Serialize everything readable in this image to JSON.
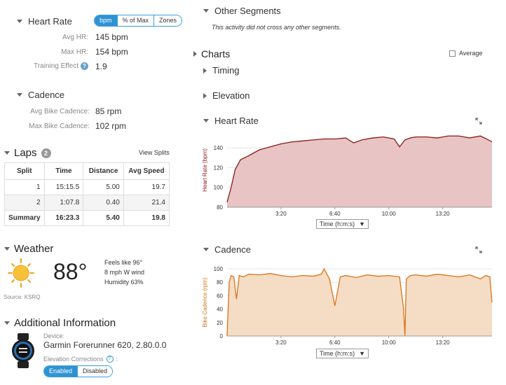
{
  "heart_rate": {
    "title": "Heart Rate",
    "toggle": [
      "bpm",
      "% of Max",
      "Zones"
    ],
    "rows": [
      {
        "label": "Avg HR:",
        "value": "145 bpm"
      },
      {
        "label": "Max HR:",
        "value": "154 bpm"
      },
      {
        "label": "Training Effect",
        "value": "1.9"
      }
    ]
  },
  "cadence": {
    "title": "Cadence",
    "rows": [
      {
        "label": "Avg Bike Cadence:",
        "value": "85 rpm"
      },
      {
        "label": "Max Bike Cadence:",
        "value": "102 rpm"
      }
    ]
  },
  "laps": {
    "title": "Laps",
    "count": "2",
    "view_splits": "View Splits",
    "headers": [
      "Split",
      "Time",
      "Distance",
      "Avg Speed"
    ],
    "rows": [
      [
        "1",
        "15:15.5",
        "5.00",
        "19.7"
      ],
      [
        "2",
        "1:07.8",
        "0.40",
        "21.4"
      ],
      [
        "Summary",
        "16:23.3",
        "5.40",
        "19.8"
      ]
    ]
  },
  "weather": {
    "title": "Weather",
    "temp": "88°",
    "feels_like": "Feels like 96°",
    "wind": "8 mph W wind",
    "humidity": "Humidity 63%",
    "source": "Source: KSRQ"
  },
  "additional": {
    "title": "Additional Information",
    "device_label": "Device:",
    "device": "Garmin Forerunner 620, 2.80.0.0",
    "elevation_label": "Elevation Corrections",
    "toggle": [
      "Enabled",
      "Disabled"
    ]
  },
  "segments": {
    "title": "Other Segments",
    "note": "This activity did not cross any other segments."
  },
  "charts": {
    "title": "Charts",
    "average_label": "Average",
    "timing": "Timing",
    "elevation": "Elevation",
    "heart_rate_title": "Heart Rate",
    "cadence_title": "Cadence",
    "time_select": "Time (h:m:s)"
  },
  "colors": {
    "hr_line": "#8b1a1a",
    "hr_fill": "#e8c4c4",
    "cad_line": "#d9731a",
    "cad_fill": "#f5dcc4",
    "accent": "#2f93d3"
  },
  "chart_data": [
    {
      "type": "area",
      "title": "Heart Rate",
      "ylabel": "Heart Rate (bpm)",
      "xlabel": "",
      "x_tick_labels": [
        "3:20",
        "6:40",
        "10:00",
        "13:20"
      ],
      "y_ticks": [
        80,
        100,
        120,
        140
      ],
      "ylim": [
        80,
        155
      ],
      "xlim_seconds": [
        0,
        983
      ],
      "x_seconds": [
        0,
        15,
        30,
        50,
        80,
        120,
        160,
        200,
        240,
        280,
        320,
        360,
        400,
        440,
        470,
        500,
        540,
        580,
        620,
        640,
        660,
        680,
        700,
        740,
        780,
        820,
        860,
        900,
        940,
        970,
        983
      ],
      "values": [
        85,
        100,
        118,
        128,
        132,
        138,
        141,
        144,
        146,
        147,
        148,
        149,
        149,
        150,
        145,
        148,
        150,
        151,
        149,
        141,
        148,
        150,
        151,
        151,
        150,
        152,
        152,
        150,
        152,
        148,
        146
      ]
    },
    {
      "type": "area",
      "title": "Cadence",
      "ylabel": "Bike Cadence (rpm)",
      "xlabel": "",
      "x_tick_labels": [
        "3:20",
        "6:40",
        "10:00",
        "13:20"
      ],
      "y_ticks": [
        0,
        20,
        40,
        60,
        80,
        100
      ],
      "ylim": [
        0,
        100
      ],
      "xlim_seconds": [
        0,
        983
      ],
      "x_seconds": [
        0,
        8,
        15,
        25,
        35,
        45,
        60,
        80,
        120,
        160,
        200,
        240,
        280,
        320,
        350,
        360,
        380,
        400,
        420,
        440,
        480,
        520,
        560,
        600,
        640,
        655,
        660,
        665,
        680,
        700,
        740,
        780,
        820,
        860,
        900,
        940,
        960,
        975,
        983
      ],
      "values": [
        0,
        80,
        90,
        88,
        55,
        90,
        88,
        92,
        91,
        93,
        90,
        88,
        90,
        89,
        92,
        100,
        85,
        45,
        88,
        90,
        87,
        91,
        89,
        90,
        88,
        40,
        0,
        85,
        90,
        91,
        89,
        92,
        90,
        88,
        91,
        85,
        90,
        88,
        50
      ]
    }
  ]
}
